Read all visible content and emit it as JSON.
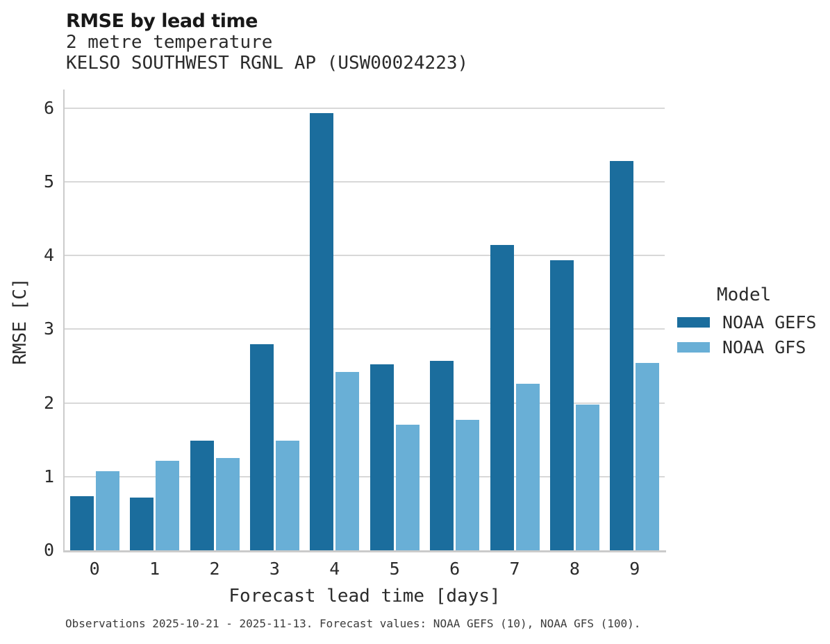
{
  "header": {
    "title": "RMSE by lead time",
    "subtitle_variable": "2 metre temperature",
    "subtitle_station": "KELSO SOUTHWEST RGNL AP (USW00024223)"
  },
  "chart_data": {
    "type": "bar",
    "title": "RMSE by lead time",
    "subtitle": "2 metre temperature",
    "station": "KELSO SOUTHWEST RGNL AP (USW00024223)",
    "xlabel": "Forecast lead time [days]",
    "ylabel": "RMSE [C]",
    "categories": [
      "0",
      "1",
      "2",
      "3",
      "4",
      "5",
      "6",
      "7",
      "8",
      "9"
    ],
    "series": [
      {
        "name": "NOAA GEFS",
        "color": "#1b6d9d",
        "values": [
          0.73,
          0.72,
          1.49,
          2.8,
          5.93,
          2.52,
          2.57,
          4.14,
          3.93,
          5.28
        ]
      },
      {
        "name": "NOAA GFS",
        "color": "#69afd6",
        "values": [
          1.07,
          1.21,
          1.25,
          1.49,
          2.42,
          1.7,
          1.77,
          2.26,
          1.98,
          2.54
        ]
      }
    ],
    "ylim": [
      0,
      6.25
    ],
    "yticks": [
      "0",
      "1",
      "2",
      "3",
      "4",
      "5",
      "6"
    ],
    "grid": true,
    "legend_title": "Model",
    "legend_position": "right"
  },
  "legend": {
    "title": "Model",
    "items": [
      {
        "label": "NOAA GEFS",
        "color": "#1b6d9d"
      },
      {
        "label": "NOAA GFS",
        "color": "#69afd6"
      }
    ]
  },
  "caption": "Observations 2025-10-21 - 2025-11-13. Forecast values: NOAA GEFS (10), NOAA GFS (100)."
}
